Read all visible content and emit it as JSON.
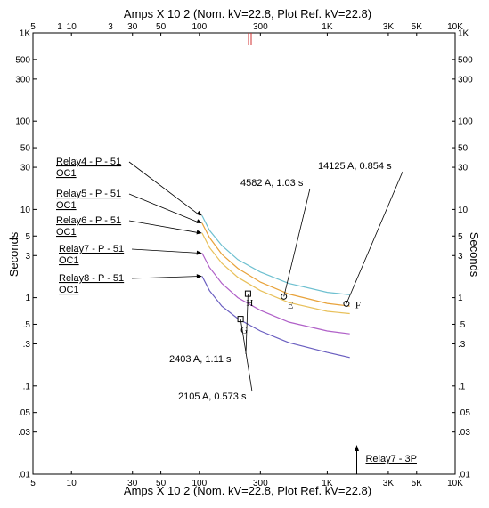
{
  "chart_data": {
    "type": "line",
    "title_top": "Amps  X  10   2 (Nom. kV=22.8, Plot Ref. kV=22.8)",
    "title_bottom": "Amps  X  10   2 (Nom. kV=22.8, Plot Ref. kV=22.8)",
    "ylabel": "Seconds",
    "x_scale": "log",
    "y_scale": "log",
    "xlim": [
      5,
      10000
    ],
    "ylim": [
      0.01,
      1000
    ],
    "x_ticks": [
      {
        "v": 5,
        "label": "5"
      },
      {
        "v": 10,
        "label": "10"
      },
      {
        "v": 30,
        "label": "30"
      },
      {
        "v": 50,
        "label": "50"
      },
      {
        "v": 100,
        "label": "100"
      },
      {
        "v": 300,
        "label": "300"
      },
      {
        "v": 1000,
        "label": "1K"
      },
      {
        "v": 3000,
        "label": "3K"
      },
      {
        "v": 5000,
        "label": "5K"
      },
      {
        "v": 10000,
        "label": "10K"
      }
    ],
    "x_ticks_top_extra": [
      {
        "v": 1,
        "label": "1"
      },
      {
        "v": 3,
        "label": "3"
      }
    ],
    "y_ticks": [
      {
        "v": 1000,
        "label": "1K"
      },
      {
        "v": 500,
        "label": "500"
      },
      {
        "v": 300,
        "label": "300"
      },
      {
        "v": 100,
        "label": "100"
      },
      {
        "v": 50,
        "label": "50"
      },
      {
        "v": 30,
        "label": "30"
      },
      {
        "v": 10,
        "label": "10"
      },
      {
        "v": 5,
        "label": "5"
      },
      {
        "v": 3,
        "label": "3"
      },
      {
        "v": 1,
        "label": "1"
      },
      {
        "v": 0.5,
        "label": ".5"
      },
      {
        "v": 0.3,
        "label": ".3"
      },
      {
        "v": 0.1,
        "label": ".1"
      },
      {
        "v": 0.05,
        "label": ".05"
      },
      {
        "v": 0.03,
        "label": ".03"
      },
      {
        "v": 0.01,
        "label": ".01"
      }
    ],
    "series": [
      {
        "name": "Relay4 - P - 51 OC1",
        "line1": "Relay4 - P - 51",
        "line2": "OC1",
        "color": "#6ec0d0",
        "x": [
          105,
          120,
          150,
          200,
          300,
          500,
          1000,
          1500
        ],
        "y": [
          8.5,
          5.8,
          3.9,
          2.7,
          1.95,
          1.45,
          1.15,
          1.08
        ],
        "anchor": [
          105,
          8.5
        ]
      },
      {
        "name": "Relay5 - P - 51 OC1",
        "line1": "Relay5 - P - 51",
        "line2": "OC1",
        "color": "#e8a23a",
        "x": [
          105,
          120,
          150,
          200,
          300,
          500,
          1000,
          1500
        ],
        "y": [
          7.0,
          4.8,
          3.1,
          2.15,
          1.5,
          1.1,
          0.86,
          0.8
        ],
        "anchor": [
          105,
          7.0
        ]
      },
      {
        "name": "Relay6 - P - 51 OC1",
        "line1": "Relay6 - P - 51",
        "line2": "OC1",
        "color": "#e8c05a",
        "x": [
          105,
          120,
          150,
          200,
          300,
          500,
          1000,
          1500
        ],
        "y": [
          5.4,
          3.7,
          2.45,
          1.7,
          1.2,
          0.88,
          0.7,
          0.66
        ],
        "anchor": [
          105,
          5.4
        ]
      },
      {
        "name": "Relay7 - P - 51 OC1",
        "line1": "Relay7 - P - 51",
        "line2": "OC1",
        "color": "#b060c8",
        "x": [
          105,
          120,
          150,
          200,
          300,
          500,
          1000,
          1500
        ],
        "y": [
          3.2,
          2.2,
          1.45,
          1.0,
          0.72,
          0.53,
          0.42,
          0.39
        ],
        "anchor": [
          105,
          3.2
        ]
      },
      {
        "name": "Relay8 - P - 51 OC1",
        "line1": "Relay8 - P - 51",
        "line2": "OC1",
        "color": "#6a5ec0",
        "x": [
          105,
          120,
          150,
          200,
          300,
          500,
          1000,
          1500
        ],
        "y": [
          1.75,
          1.2,
          0.8,
          0.58,
          0.42,
          0.31,
          0.24,
          0.21
        ],
        "anchor": [
          105,
          1.75
        ]
      }
    ],
    "points": [
      {
        "label": "H",
        "x": 240,
        "y": 1.11,
        "marker": "square",
        "annotation": "2403 A, 1.11 s"
      },
      {
        "label": "G",
        "x": 210,
        "y": 0.573,
        "marker": "square",
        "annotation": "2105 A, 0.573 s"
      },
      {
        "label": "E",
        "x": 458,
        "y": 1.03,
        "marker": "circle",
        "annotation": "4582 A, 1.03 s"
      },
      {
        "label": "F",
        "x": 1412,
        "y": 0.854,
        "marker": "circle",
        "annotation": "14125 A, 0.854 s"
      }
    ],
    "relay7_3p": {
      "label": "Relay7 - 3P",
      "x": 1700,
      "y": 0.01
    }
  }
}
